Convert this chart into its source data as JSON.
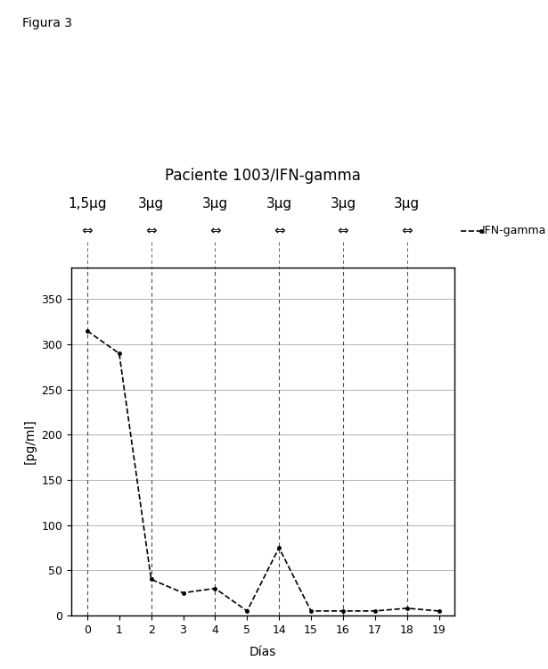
{
  "title_fig": "Figura 3",
  "title_main": "Paciente 1003/IFN-gamma",
  "dose_labels": [
    "1,5μg",
    "3μg",
    "3μg",
    "3μg",
    "3μg",
    "3μg"
  ],
  "dose_x_positions_data": [
    0,
    2,
    4,
    14,
    16,
    18
  ],
  "ifn_gamma_data_x": [
    0,
    1,
    2,
    3,
    4,
    5,
    14,
    15,
    16,
    17,
    18,
    19
  ],
  "ifn_gamma_data_y": [
    315,
    290,
    40,
    25,
    30,
    5,
    75,
    5,
    5,
    5,
    8,
    5
  ],
  "ylabel": "[pg/ml]",
  "xlabel": "Días",
  "yticks": [
    0,
    50,
    100,
    150,
    200,
    250,
    300,
    350
  ],
  "xtick_labels": [
    "0",
    "1",
    "2",
    "3",
    "4",
    "5",
    "14",
    "15",
    "16",
    "17",
    "18",
    "19"
  ],
  "ylim": [
    0,
    385
  ],
  "vline_x_indices": [
    0,
    2,
    4,
    6,
    9,
    11
  ],
  "legend_label": "IFN-gamma",
  "line_color": "#000000",
  "background_color": "#ffffff",
  "fig_title_fontsize": 10,
  "main_title_fontsize": 12,
  "axis_label_fontsize": 10,
  "tick_fontsize": 9,
  "dose_fontsize": 11,
  "arrow_fontsize": 11
}
